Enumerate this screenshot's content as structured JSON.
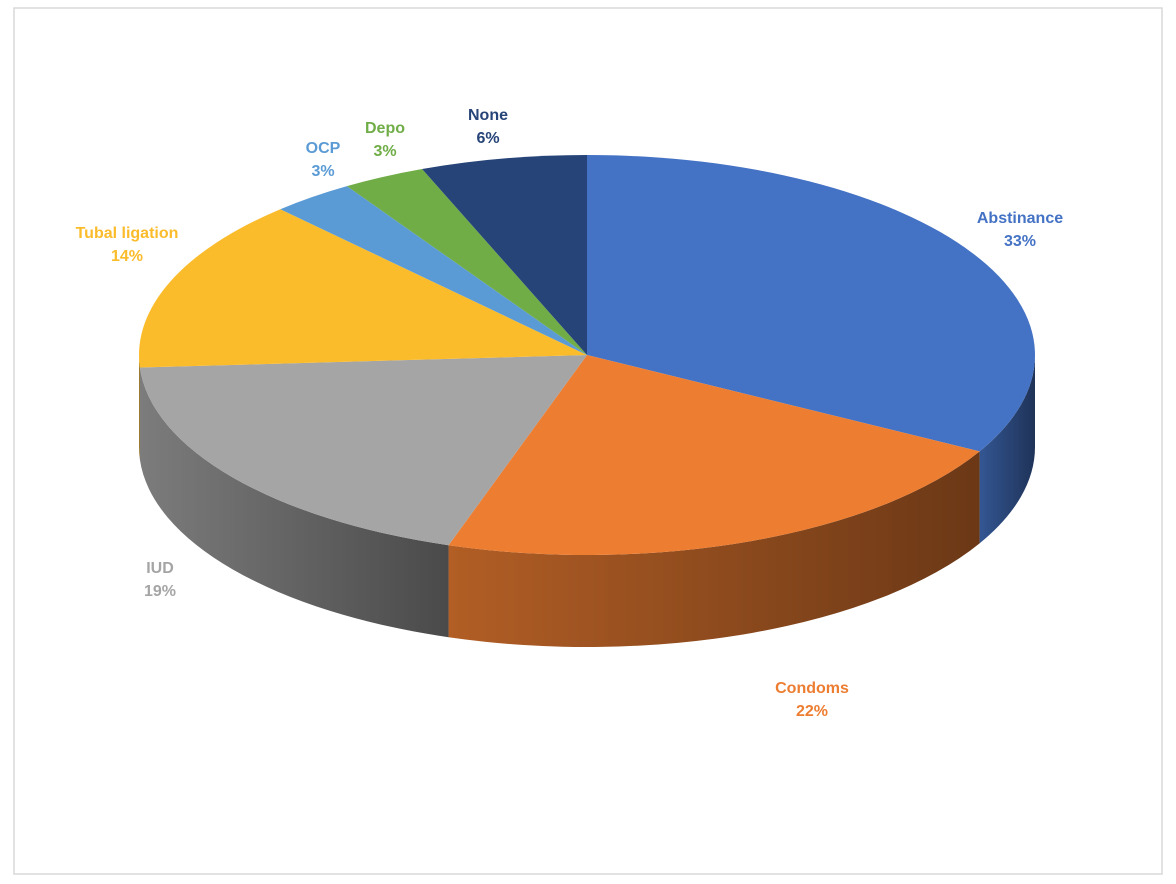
{
  "chart_data": {
    "type": "pie",
    "categories": [
      "Abstinance",
      "Condoms",
      "IUD",
      "Tubal ligation",
      "OCP",
      "Depo",
      "None"
    ],
    "values": [
      33,
      22,
      19,
      14,
      3,
      3,
      6
    ],
    "value_labels": [
      "33%",
      "22%",
      "19%",
      "14%",
      "3%",
      "3%",
      "6%"
    ],
    "colors": [
      "#4472c4",
      "#ed7d31",
      "#a5a5a5",
      "#fbbc2c",
      "#5b9bd5",
      "#70ad47",
      "#264478"
    ]
  }
}
